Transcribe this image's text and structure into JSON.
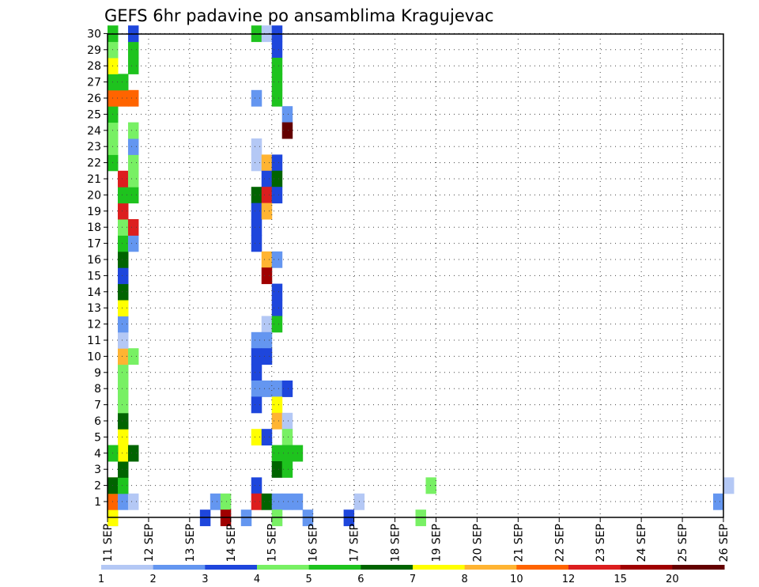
{
  "chart_data": {
    "type": "heatmap",
    "title": "GEFS 6hr padavine po ansamblima Kragujevac",
    "x_tick_labels": [
      "11 SEP",
      "12 SEP",
      "13 SEP",
      "14 SEP",
      "15 SEP",
      "16 SEP",
      "17 SEP",
      "18 SEP",
      "19 SEP",
      "20 SEP",
      "21 SEP",
      "22 SEP",
      "23 SEP",
      "24 SEP",
      "25 SEP",
      "26 SEP"
    ],
    "y_tick_labels": [
      "1",
      "2",
      "3",
      "4",
      "5",
      "6",
      "7",
      "8",
      "9",
      "10",
      "11",
      "12",
      "13",
      "14",
      "15",
      "16",
      "17",
      "18",
      "19",
      "20",
      "21",
      "22",
      "23",
      "24",
      "25",
      "26",
      "27",
      "28",
      "29",
      "30"
    ],
    "time_steps_per_day": 4,
    "ensemble_members": 30,
    "grid": true,
    "legend": {
      "placement": "bottom",
      "levels": [
        "1",
        "2",
        "3",
        "4",
        "5",
        "6",
        "7",
        "8",
        "10",
        "12",
        "15",
        "20"
      ],
      "colors": [
        "#b4c8f5",
        "#6496f0",
        "#1e46dc",
        "#78f064",
        "#1ec31e",
        "#006400",
        "#ffff00",
        "#ffb432",
        "#ff6400",
        "#dc1e1e",
        "#a00000",
        "#640000"
      ]
    },
    "cells": [
      [
        0,
        0,
        1
      ],
      [
        0,
        0,
        6
      ],
      [
        0,
        1,
        8
      ],
      [
        1,
        1,
        1
      ],
      [
        2,
        1,
        0
      ],
      [
        9,
        0,
        2
      ],
      [
        10,
        1,
        1
      ],
      [
        11,
        1,
        3
      ],
      [
        11,
        0,
        10
      ],
      [
        13,
        0,
        1
      ],
      [
        16,
        0,
        0
      ],
      [
        19,
        0,
        1
      ],
      [
        23,
        0,
        2
      ],
      [
        24,
        1,
        0
      ],
      [
        30,
        0,
        3
      ],
      [
        31,
        2,
        3
      ],
      [
        59,
        1,
        1
      ],
      [
        60,
        2,
        0
      ],
      [
        0,
        2,
        6
      ],
      [
        0,
        2,
        5
      ],
      [
        1,
        2,
        4
      ],
      [
        1,
        3,
        5
      ],
      [
        1,
        4,
        6
      ],
      [
        1,
        5,
        6
      ],
      [
        1,
        6,
        5
      ],
      [
        1,
        7,
        3
      ],
      [
        1,
        8,
        3
      ],
      [
        1,
        9,
        3
      ],
      [
        1,
        10,
        7
      ],
      [
        2,
        10,
        3
      ],
      [
        1,
        11,
        0
      ],
      [
        1,
        12,
        1
      ],
      [
        1,
        13,
        6
      ],
      [
        1,
        14,
        5
      ],
      [
        1,
        15,
        2
      ],
      [
        1,
        16,
        5
      ],
      [
        1,
        17,
        4
      ],
      [
        2,
        17,
        1
      ],
      [
        1,
        18,
        3
      ],
      [
        2,
        18,
        9
      ],
      [
        1,
        19,
        9
      ],
      [
        1,
        20,
        4
      ],
      [
        2,
        20,
        4
      ],
      [
        0,
        4,
        4
      ],
      [
        2,
        4,
        5
      ],
      [
        1,
        21,
        9
      ],
      [
        2,
        21,
        3
      ],
      [
        0,
        22,
        4
      ],
      [
        2,
        22,
        3
      ],
      [
        0,
        23,
        3
      ],
      [
        2,
        23,
        1
      ],
      [
        0,
        24,
        3
      ],
      [
        2,
        24,
        3
      ],
      [
        0,
        25,
        4
      ],
      [
        0,
        26,
        8
      ],
      [
        1,
        26,
        8
      ],
      [
        2,
        26,
        8
      ],
      [
        0,
        27,
        4
      ],
      [
        1,
        27,
        4
      ],
      [
        0,
        28,
        6
      ],
      [
        2,
        28,
        4
      ],
      [
        0,
        29,
        3
      ],
      [
        2,
        29,
        4
      ],
      [
        0,
        30,
        4
      ],
      [
        2,
        30,
        2
      ],
      [
        14,
        30,
        4
      ],
      [
        15,
        30,
        0
      ],
      [
        16,
        30,
        2
      ],
      [
        16,
        29,
        2
      ],
      [
        16,
        28,
        4
      ],
      [
        16,
        27,
        4
      ],
      [
        16,
        26,
        4
      ],
      [
        14,
        26,
        1
      ],
      [
        17,
        25,
        1
      ],
      [
        17,
        24,
        11
      ],
      [
        14,
        22,
        0
      ],
      [
        14,
        23,
        0
      ],
      [
        15,
        22,
        7
      ],
      [
        16,
        22,
        2
      ],
      [
        15,
        21,
        2
      ],
      [
        16,
        21,
        5
      ],
      [
        14,
        20,
        5
      ],
      [
        15,
        20,
        9
      ],
      [
        16,
        20,
        2
      ],
      [
        14,
        19,
        2
      ],
      [
        15,
        19,
        7
      ],
      [
        14,
        18,
        2
      ],
      [
        14,
        17,
        2
      ],
      [
        15,
        16,
        7
      ],
      [
        16,
        16,
        1
      ],
      [
        15,
        15,
        10
      ],
      [
        16,
        14,
        2
      ],
      [
        16,
        13,
        2
      ],
      [
        15,
        12,
        0
      ],
      [
        16,
        12,
        4
      ],
      [
        14,
        11,
        1
      ],
      [
        15,
        11,
        1
      ],
      [
        14,
        10,
        2
      ],
      [
        15,
        10,
        2
      ],
      [
        14,
        9,
        2
      ],
      [
        14,
        8,
        1
      ],
      [
        15,
        8,
        1
      ],
      [
        16,
        8,
        1
      ],
      [
        17,
        8,
        2
      ],
      [
        14,
        7,
        2
      ],
      [
        16,
        7,
        6
      ],
      [
        16,
        6,
        7
      ],
      [
        17,
        6,
        0
      ],
      [
        14,
        5,
        6
      ],
      [
        15,
        5,
        2
      ],
      [
        17,
        5,
        3
      ],
      [
        16,
        4,
        4
      ],
      [
        17,
        4,
        4
      ],
      [
        18,
        4,
        4
      ],
      [
        16,
        3,
        5
      ],
      [
        17,
        3,
        4
      ],
      [
        14,
        2,
        2
      ],
      [
        14,
        1,
        9
      ],
      [
        15,
        1,
        5
      ],
      [
        16,
        1,
        1
      ],
      [
        17,
        1,
        1
      ],
      [
        18,
        1,
        1
      ],
      [
        16,
        0,
        3
      ]
    ]
  }
}
